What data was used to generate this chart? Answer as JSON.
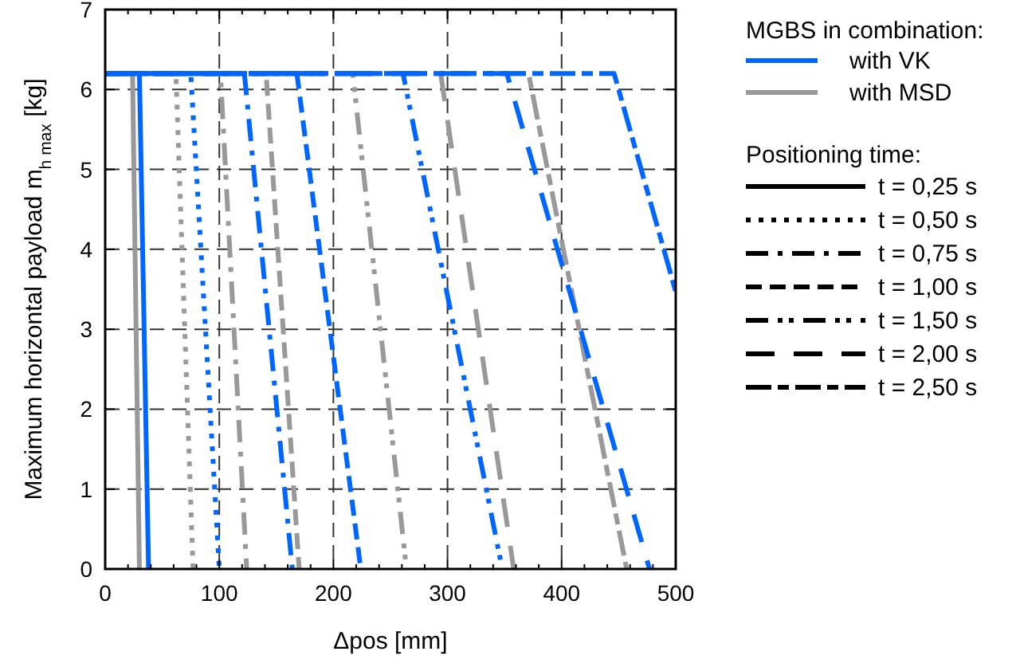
{
  "chart_data": {
    "type": "line",
    "xlabel": "Δpos [mm]",
    "ylabel": "Maximum horizontal payload m$_{h max}$ [kg]",
    "xlim": [
      0,
      500
    ],
    "ylim": [
      0,
      7
    ],
    "xticks": [
      0,
      {
        "value": 20,
        "label": null
      },
      {
        "value": 40,
        "label": null
      },
      {
        "value": 60,
        "label": null
      },
      {
        "value": 80,
        "label": null
      },
      100,
      {
        "value": 120,
        "label": null
      },
      {
        "value": 140,
        "label": null
      },
      {
        "value": 160,
        "label": null
      },
      {
        "value": 180,
        "label": null
      },
      200,
      {
        "value": 220,
        "label": null
      },
      {
        "value": 240,
        "label": null
      },
      {
        "value": 260,
        "label": null
      },
      {
        "value": 280,
        "label": null
      },
      300,
      {
        "value": 320,
        "label": null
      },
      {
        "value": 340,
        "label": null
      },
      {
        "value": 360,
        "label": null
      },
      {
        "value": 380,
        "label": null
      },
      400,
      {
        "value": 420,
        "label": null
      },
      {
        "value": 440,
        "label": null
      },
      {
        "value": 460,
        "label": null
      },
      {
        "value": 480,
        "label": null
      },
      500
    ],
    "yticks": [
      0,
      1,
      2,
      3,
      4,
      5,
      6,
      7
    ],
    "grid": true,
    "legend": "right",
    "legend_title": "MGBS in combination:",
    "annotations": [
      "Positioning time:",
      "t = 0,25 s",
      "t = 0,50 s",
      "t = 0,75 s",
      "t = 1,00 s",
      "t = 1,50 s",
      "t = 2,00 s",
      "t = 2,50 s"
    ],
    "series": [
      {
        "name": "with MSD",
        "color": "#999999",
        "line_style": "solid",
        "x": [
          0,
          24,
          30
        ],
        "values": [
          6.2,
          6.2,
          0
        ]
      },
      {
        "color": "#999999",
        "line_style": "dotted",
        "x": [
          0,
          62,
          77
        ],
        "values": [
          6.2,
          6.2,
          0
        ]
      },
      {
        "color": "#999999",
        "line_style": "dashdot",
        "x": [
          0,
          101,
          124
        ],
        "values": [
          6.2,
          6.2,
          0
        ]
      },
      {
        "color": "#999999",
        "line_style": "dashed",
        "x": [
          0,
          141,
          170
        ],
        "values": [
          6.2,
          6.2,
          0
        ]
      },
      {
        "color": "#999999",
        "line_style": "dashdotdot",
        "x": [
          0,
          217,
          264
        ],
        "values": [
          6.2,
          6.2,
          0
        ]
      },
      {
        "color": "#999999",
        "line_style": "longdash",
        "x": [
          0,
          294,
          358
        ],
        "values": [
          6.2,
          6.2,
          0
        ]
      },
      {
        "color": "#999999",
        "line_style": "dashlongdash",
        "x": [
          0,
          371,
          457
        ],
        "values": [
          6.2,
          6.2,
          0
        ]
      },
      {
        "name": "with VK",
        "color": "#0066ff",
        "line_style": "solid",
        "x": [
          0,
          30,
          38
        ],
        "values": [
          6.2,
          6.2,
          0
        ]
      },
      {
        "color": "#0066ff",
        "line_style": "dotted",
        "x": [
          0,
          75,
          100
        ],
        "values": [
          6.2,
          6.2,
          0
        ]
      },
      {
        "color": "#0066ff",
        "line_style": "dashdot",
        "x": [
          0,
          122,
          164
        ],
        "values": [
          6.2,
          6.2,
          0
        ]
      },
      {
        "color": "#0066ff",
        "line_style": "dashed",
        "x": [
          0,
          168,
          224
        ],
        "values": [
          6.2,
          6.2,
          0
        ]
      },
      {
        "color": "#0066ff",
        "line_style": "dashdotdot",
        "x": [
          0,
          261,
          348
        ],
        "values": [
          6.2,
          6.2,
          0
        ]
      },
      {
        "color": "#0066ff",
        "line_style": "longdash",
        "x": [
          0,
          352,
          477
        ],
        "values": [
          6.2,
          6.2,
          0
        ]
      },
      {
        "color": "#0066ff",
        "line_style": "dashlongdash",
        "x": [
          0,
          446,
          500
        ],
        "values": [
          6.2,
          6.2,
          3.47
        ]
      }
    ]
  }
}
